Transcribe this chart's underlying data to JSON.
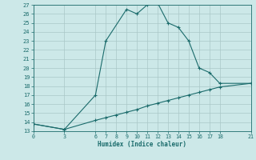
{
  "xlabel": "Humidex (Indice chaleur)",
  "bg_color": "#cce8e8",
  "line_color": "#1a6b6b",
  "grid_color": "#aac8c8",
  "x_ticks": [
    0,
    3,
    6,
    7,
    8,
    9,
    10,
    11,
    12,
    13,
    14,
    15,
    16,
    17,
    18,
    21
  ],
  "ylim": [
    13,
    27
  ],
  "xlim": [
    0,
    21
  ],
  "y_ticks": [
    13,
    14,
    15,
    16,
    17,
    18,
    19,
    20,
    21,
    22,
    23,
    24,
    25,
    26,
    27
  ],
  "curve1_x": [
    0,
    3,
    6,
    7,
    9,
    10,
    11,
    12,
    13,
    14,
    15,
    16,
    17,
    18,
    21
  ],
  "curve1_y": [
    13.8,
    13.2,
    17.0,
    23.0,
    26.5,
    26.0,
    27.0,
    27.2,
    25.0,
    24.5,
    23.0,
    20.0,
    19.5,
    18.3,
    18.3
  ],
  "curve2_x": [
    0,
    3,
    6,
    7,
    8,
    9,
    10,
    11,
    12,
    13,
    14,
    15,
    16,
    17,
    18,
    21
  ],
  "curve2_y": [
    13.8,
    13.2,
    14.2,
    14.5,
    14.8,
    15.1,
    15.4,
    15.8,
    16.1,
    16.4,
    16.7,
    17.0,
    17.3,
    17.6,
    17.9,
    18.3
  ]
}
